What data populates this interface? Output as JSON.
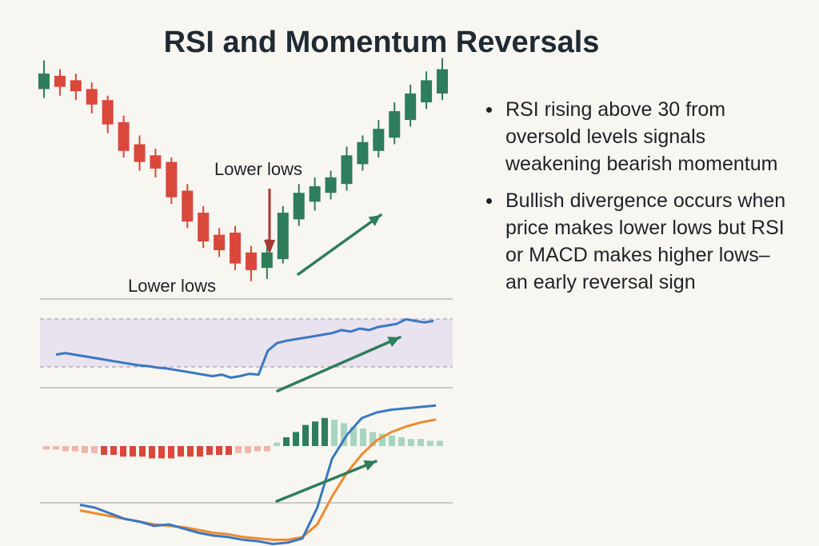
{
  "title": "RSI and Momentum Reversals",
  "bullets": [
    "RSI rising above 30 from oversold levels signals weakening bearish momentum",
    "Bullish divergence occurs when price makes lower lows but RSI or MACD makes higher lows–an early reversal sign"
  ],
  "colors": {
    "bull": "#2e7d5b",
    "bear": "#d9483b",
    "rsi_line": "#3a78c2",
    "macd_line": "#3a78c2",
    "signal_line": "#ef8a2e",
    "rsi_band": "#e9e2ef",
    "arrow_down": "#a63a30",
    "arrow_up": "#2e7d5b",
    "axis_line": "#c9c9c9"
  },
  "chart_data": [
    {
      "type": "candlestick",
      "title": "",
      "annotations": [
        "Lower lows",
        "Lower lows"
      ],
      "candles": [
        {
          "o": 90,
          "c": 97,
          "h": 103,
          "l": 86
        },
        {
          "o": 96,
          "c": 91,
          "h": 99,
          "l": 87
        },
        {
          "o": 94,
          "c": 89,
          "h": 97,
          "l": 85
        },
        {
          "o": 90,
          "c": 83,
          "h": 93,
          "l": 79
        },
        {
          "o": 85,
          "c": 74,
          "h": 87,
          "l": 70
        },
        {
          "o": 75,
          "c": 62,
          "h": 78,
          "l": 59
        },
        {
          "o": 65,
          "c": 57,
          "h": 69,
          "l": 53
        },
        {
          "o": 60,
          "c": 54,
          "h": 63,
          "l": 50
        },
        {
          "o": 57,
          "c": 41,
          "h": 59,
          "l": 38
        },
        {
          "o": 44,
          "c": 30,
          "h": 47,
          "l": 27
        },
        {
          "o": 34,
          "c": 21,
          "h": 37,
          "l": 18
        },
        {
          "o": 24,
          "c": 17,
          "h": 27,
          "l": 14
        },
        {
          "o": 25,
          "c": 11,
          "h": 28,
          "l": 8
        },
        {
          "o": 16,
          "c": 8,
          "h": 19,
          "l": 3
        },
        {
          "o": 9,
          "c": 16,
          "h": 22,
          "l": 4
        },
        {
          "o": 13,
          "c": 34,
          "h": 37,
          "l": 11
        },
        {
          "o": 31,
          "c": 43,
          "h": 47,
          "l": 28
        },
        {
          "o": 39,
          "c": 46,
          "h": 50,
          "l": 35
        },
        {
          "o": 43,
          "c": 50,
          "h": 53,
          "l": 40
        },
        {
          "o": 47,
          "c": 60,
          "h": 64,
          "l": 44
        },
        {
          "o": 56,
          "c": 66,
          "h": 69,
          "l": 53
        },
        {
          "o": 62,
          "c": 72,
          "h": 76,
          "l": 59
        },
        {
          "o": 68,
          "c": 80,
          "h": 84,
          "l": 65
        },
        {
          "o": 76,
          "c": 88,
          "h": 92,
          "l": 73
        },
        {
          "o": 84,
          "c": 94,
          "h": 98,
          "l": 81
        },
        {
          "o": 88,
          "c": 99,
          "h": 104,
          "l": 85
        }
      ]
    },
    {
      "type": "line",
      "title": "",
      "ylim": [
        0,
        100
      ],
      "band": [
        30,
        70
      ],
      "series": [
        {
          "values": [
            40,
            42,
            40,
            38,
            36,
            34,
            32,
            30,
            28,
            26,
            25,
            23,
            22,
            20,
            18,
            16,
            14,
            12,
            14,
            10,
            12,
            15,
            14,
            45,
            55,
            58,
            60,
            62,
            64,
            66,
            68,
            72,
            70,
            74,
            72,
            76,
            78,
            80,
            86,
            84,
            82,
            84
          ]
        }
      ]
    },
    {
      "type": "line",
      "title": "",
      "ylim": [
        -60,
        60
      ],
      "series": [
        {
          "name": "",
          "values": [
            -18,
            -20,
            -24,
            -28,
            -30,
            -33,
            -32,
            -35,
            -38,
            -40,
            -41,
            -43,
            -44,
            -46,
            -45,
            -42,
            -20,
            15,
            32,
            44,
            48,
            50,
            51,
            52,
            53
          ]
        },
        {
          "name": "",
          "values": [
            -22,
            -24,
            -26,
            -28,
            -30,
            -32,
            -33,
            -34,
            -36,
            -38,
            -39,
            -41,
            -42,
            -43,
            -43,
            -41,
            -32,
            -12,
            5,
            18,
            28,
            34,
            38,
            41,
            43
          ]
        }
      ],
      "histogram": [
        -2,
        -2,
        -3,
        -3,
        -4,
        -4,
        -5,
        -5,
        -6,
        -6,
        -6,
        -7,
        -7,
        -7,
        -6,
        -6,
        -6,
        -5,
        -5,
        -5,
        -4,
        -4,
        -3,
        -3,
        2,
        5,
        8,
        12,
        14,
        16,
        15,
        13,
        11,
        10,
        8,
        7,
        6,
        5,
        4,
        4,
        3,
        3
      ]
    }
  ]
}
